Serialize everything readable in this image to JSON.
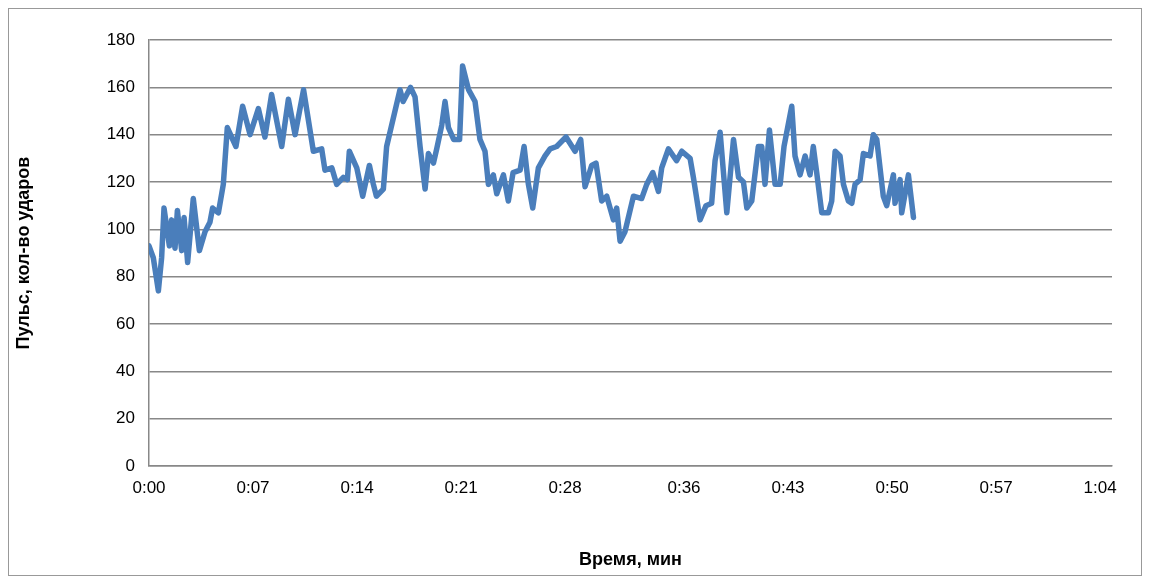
{
  "chart_data": {
    "type": "line",
    "xlabel": "Время, мин",
    "ylabel": "Пульс, кол-во ударов",
    "xlim": [
      0,
      64.8
    ],
    "xticks": [
      {
        "value": 0,
        "label": "0:00"
      },
      {
        "value": 7,
        "label": "0:07"
      },
      {
        "value": 14,
        "label": "0:14"
      },
      {
        "value": 21,
        "label": "0:21"
      },
      {
        "value": 28,
        "label": "0:28"
      },
      {
        "value": 36,
        "label": "0:36"
      },
      {
        "value": 43,
        "label": "0:43"
      },
      {
        "value": 50,
        "label": "0:50"
      },
      {
        "value": 57,
        "label": "0:57"
      },
      {
        "value": 64,
        "label": "1:04"
      }
    ],
    "ylim": [
      0,
      180
    ],
    "yticks": [
      0,
      20,
      40,
      60,
      80,
      100,
      120,
      140,
      160,
      180
    ],
    "grid": "y",
    "legend": false,
    "marker": "none",
    "line_style": "solid",
    "series": [
      {
        "color": "#4a7ebb",
        "x": [
          0,
          0.29,
          0.63,
          0.85,
          1.01,
          1.37,
          1.52,
          1.75,
          1.91,
          2.2,
          2.36,
          2.6,
          2.98,
          3.39,
          3.77,
          4.1,
          4.28,
          4.67,
          5.0,
          5.27,
          5.85,
          6.3,
          6.8,
          7.36,
          7.8,
          8.25,
          8.93,
          9.38,
          9.83,
          10.4,
          11.06,
          11.62,
          11.84,
          12.3,
          12.63,
          13.08,
          13.35,
          13.48,
          13.98,
          14.38,
          14.83,
          15.1,
          15.3,
          15.77,
          15.99,
          16.44,
          16.89,
          17.1,
          17.6,
          17.9,
          18.24,
          18.58,
          18.8,
          19.14,
          19.36,
          19.7,
          19.92,
          20.15,
          20.5,
          20.9,
          21.1,
          21.5,
          21.94,
          22.27,
          22.61,
          22.84,
          23.17,
          23.4,
          23.85,
          24.18,
          24.5,
          24.97,
          25.24,
          25.53,
          25.82,
          26.2,
          26.65,
          26.99,
          27.43,
          28.06,
          28.67,
          29.05,
          29.34,
          29.79,
          30.08,
          30.46,
          30.8,
          31.25,
          31.47,
          31.7,
          32.03,
          32.6,
          33.15,
          33.49,
          33.9,
          34.28,
          34.5,
          34.95,
          35.5,
          35.85,
          36.41,
          36.63,
          37.08,
          37.48,
          37.86,
          38.09,
          38.43,
          38.88,
          39.33,
          39.67,
          40.0,
          40.23,
          40.56,
          41.0,
          41.23,
          41.45,
          41.75,
          42.13,
          42.47,
          42.73,
          43.25,
          43.47,
          43.81,
          44.15,
          44.48,
          44.7,
          44.93,
          45.27,
          45.72,
          45.94,
          46.17,
          46.5,
          46.73,
          47.06,
          47.29,
          47.51,
          47.85,
          48.07,
          48.52,
          48.74,
          48.97,
          49.41,
          49.64,
          50.09,
          50.2,
          50.54,
          50.65,
          51.1,
          51.44
        ],
        "values": [
          93,
          88,
          74,
          88,
          109,
          93,
          104,
          92,
          108,
          91,
          105,
          86,
          113,
          91,
          99,
          103,
          109,
          107,
          119,
          143,
          135,
          152,
          140,
          151,
          139,
          157,
          135,
          155,
          140,
          159,
          133,
          134,
          125,
          126,
          119,
          122,
          121,
          133,
          126,
          114,
          127,
          119,
          114,
          117,
          135,
          147,
          159,
          154,
          160,
          156,
          135,
          117,
          132,
          128,
          134,
          144,
          154,
          143,
          138,
          138,
          169,
          159,
          154,
          138,
          133,
          119,
          123,
          115,
          123,
          112,
          124,
          125,
          135,
          119,
          109,
          126,
          131,
          134,
          135,
          139,
          133,
          138,
          118,
          127,
          128,
          112,
          114,
          104,
          109,
          95,
          99,
          114,
          113,
          119,
          124,
          116,
          126,
          134,
          129,
          133,
          130,
          122,
          104,
          110,
          111,
          129,
          141,
          107,
          138,
          122,
          120,
          109,
          112,
          135,
          135,
          119,
          142,
          119,
          119,
          135,
          152,
          131,
          123,
          131,
          123,
          135,
          124,
          107,
          107,
          112,
          133,
          131,
          119,
          112,
          111,
          119,
          121,
          132,
          131,
          140,
          138,
          114,
          110,
          123,
          111,
          121,
          107,
          123,
          105
        ]
      }
    ]
  }
}
